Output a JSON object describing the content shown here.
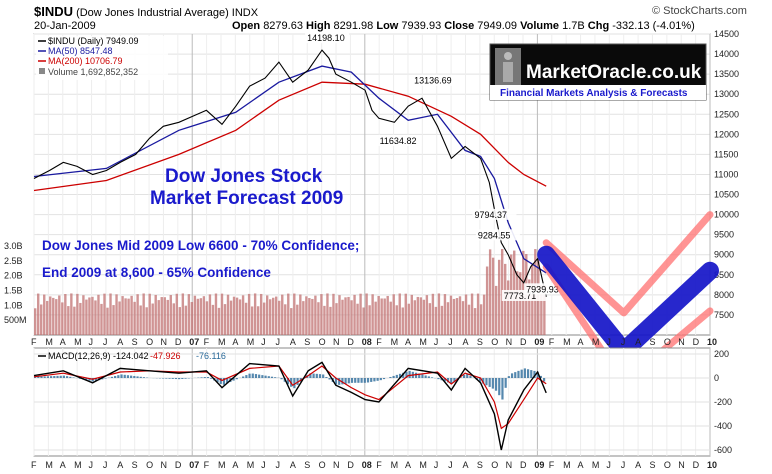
{
  "header": {
    "symbol": "$INDU",
    "name": "(Dow Jones Industrial Average)",
    "exchange": "INDX",
    "date": "20-Jan-2009",
    "source": "© StockCharts.com",
    "open_label": "Open",
    "open": "8279.63",
    "high_label": "High",
    "high": "8291.98",
    "low_label": "Low",
    "low": "7939.93",
    "close_label": "Close",
    "close": "7949.09",
    "volume_label": "Volume",
    "volume": "1.7B",
    "chg_label": "Chg",
    "chg": "-332.13 (-4.01%)"
  },
  "legend": {
    "price": "$INDU (Daily) 7949.09",
    "ma50": "MA(50) 8547.48",
    "ma200": "MA(200) 10706.79",
    "volume": "Volume 1,692,852,352"
  },
  "logo": {
    "brand": "MarketOracle.co.uk",
    "tagline": "Financial Markets Analysis & Forecasts"
  },
  "annotations": {
    "forecast_title_1": "Dow Jones Stock",
    "forecast_title_2": "Market Forecast 2009",
    "line1": "Dow Jones Mid 2009 Low 6600 - 70% Confidence;",
    "line2": "End 2009 at 8,600 - 65% Confidence"
  },
  "colors": {
    "ma50": "#1a1aa0",
    "ma200": "#cc0000",
    "price": "#000000",
    "volume": "#c07070",
    "forecast": "#1515c8",
    "band": "#ff7070",
    "annotation": "#1a1acc",
    "macd_hist": "#2a6a9a"
  },
  "chart_data": [
    {
      "type": "line",
      "name": "price",
      "ylim": [
        7000,
        14500
      ],
      "yticks": [
        7500,
        8000,
        8500,
        9000,
        9500,
        10000,
        10500,
        11000,
        11500,
        12000,
        12500,
        13000,
        13500,
        14000,
        14500
      ],
      "xlim": [
        2006.08,
        2010.0
      ],
      "x_tick_labels": [
        "F",
        "M",
        "A",
        "M",
        "J",
        "J",
        "A",
        "S",
        "O",
        "N",
        "D",
        "07",
        "F",
        "M",
        "A",
        "M",
        "J",
        "J",
        "A",
        "S",
        "O",
        "N",
        "D",
        "08",
        "F",
        "M",
        "A",
        "M",
        "J",
        "J",
        "A",
        "S",
        "O",
        "N",
        "D",
        "09",
        "F",
        "M",
        "A",
        "M",
        "J",
        "J",
        "A",
        "S",
        "O",
        "N",
        "D",
        "10"
      ],
      "price_series": {
        "x": [
          2006.08,
          2006.17,
          2006.25,
          2006.33,
          2006.42,
          2006.5,
          2006.58,
          2006.67,
          2006.75,
          2006.83,
          2006.92,
          2007.0,
          2007.08,
          2007.17,
          2007.25,
          2007.33,
          2007.42,
          2007.5,
          2007.58,
          2007.67,
          2007.75,
          2007.79,
          2007.83,
          2007.92,
          2008.0,
          2008.04,
          2008.08,
          2008.17,
          2008.25,
          2008.33,
          2008.42,
          2008.5,
          2008.58,
          2008.67,
          2008.72,
          2008.76,
          2008.79,
          2008.83,
          2008.88,
          2008.92,
          2008.96,
          2009.0,
          2009.05
        ],
        "y": [
          10900,
          11100,
          11300,
          11200,
          11000,
          11100,
          11300,
          11500,
          11900,
          12200,
          12300,
          12450,
          12600,
          12250,
          12700,
          13200,
          13400,
          13800,
          13300,
          13600,
          14100,
          13900,
          13500,
          13300,
          13100,
          12600,
          12400,
          12300,
          12700,
          12900,
          12200,
          11400,
          11700,
          11400,
          10800,
          9900,
          9300,
          9000,
          8500,
          8300,
          8700,
          8900,
          7950
        ]
      },
      "ma50": {
        "x": [
          2006.08,
          2006.5,
          2006.92,
          2007.25,
          2007.5,
          2007.75,
          2007.92,
          2008.08,
          2008.25,
          2008.42,
          2008.58,
          2008.67,
          2008.75,
          2008.83,
          2008.92,
          2009.05
        ],
        "y": [
          10950,
          11150,
          12100,
          12550,
          13300,
          13700,
          13550,
          12900,
          12350,
          12500,
          11600,
          11450,
          10900,
          9800,
          8900,
          8547
        ]
      },
      "ma200": {
        "x": [
          2006.08,
          2006.5,
          2006.92,
          2007.25,
          2007.5,
          2007.75,
          2008.0,
          2008.25,
          2008.5,
          2008.67,
          2008.83,
          2008.92,
          2009.05
        ],
        "y": [
          10600,
          10850,
          11500,
          12100,
          12850,
          13300,
          13250,
          12950,
          12450,
          12000,
          11300,
          11000,
          10707
        ]
      },
      "volume": {
        "levels_label": [
          "3.0B",
          "2.5B",
          "2.0B",
          "1.5B",
          "1.0B",
          "500M"
        ],
        "levels_value": [
          3.0,
          2.5,
          2.0,
          1.5,
          1.0,
          0.5
        ],
        "latest_B": 1.69
      },
      "labels": [
        {
          "text": "14198.10",
          "x": 2007.78,
          "y": 14198
        },
        {
          "text": "13136.69",
          "x": 2008.4,
          "y": 13136
        },
        {
          "text": "11634.82",
          "x": 2008.2,
          "y": 11634
        },
        {
          "text": "9794.37",
          "x": 2008.75,
          "y": 9794
        },
        {
          "text": "9284.55",
          "x": 2008.77,
          "y": 9284
        },
        {
          "text": "7773.71",
          "x": 2008.92,
          "y": 7773
        },
        {
          "text": "7939.93",
          "x": 2009.05,
          "y": 7939
        }
      ],
      "forecast": {
        "x": [
          2009.05,
          2009.5,
          2010.0
        ],
        "y": [
          9000,
          6600,
          8600
        ]
      },
      "band_upper": {
        "x": [
          2009.05,
          2009.5,
          2010.0
        ],
        "y": [
          9300,
          7550,
          10000
        ]
      },
      "band_lower": {
        "x": [
          2009.05,
          2009.5,
          2010.0
        ],
        "y": [
          8700,
          5800,
          7600
        ]
      }
    },
    {
      "type": "line",
      "name": "MACD",
      "title": "MACD(12,26,9) -124.042",
      "signal_label": "-47.926",
      "hist_label": "-76.116",
      "ylim": [
        -650,
        250
      ],
      "yticks": [
        200,
        0,
        -200,
        -400,
        -600
      ],
      "macd": {
        "x": [
          2006.08,
          2006.25,
          2006.42,
          2006.58,
          2006.75,
          2006.92,
          2007.08,
          2007.17,
          2007.33,
          2007.5,
          2007.58,
          2007.67,
          2007.75,
          2007.83,
          2007.92,
          2008.0,
          2008.08,
          2008.25,
          2008.42,
          2008.5,
          2008.58,
          2008.67,
          2008.75,
          2008.79,
          2008.83,
          2008.92,
          2009.0,
          2009.05
        ],
        "y": [
          20,
          60,
          -40,
          80,
          60,
          40,
          60,
          -80,
          120,
          100,
          -150,
          60,
          130,
          -60,
          -120,
          -180,
          -200,
          80,
          40,
          -100,
          80,
          -40,
          -300,
          -600,
          -350,
          -100,
          50,
          -124
        ]
      },
      "signal": {
        "x": [
          2006.08,
          2006.25,
          2006.42,
          2006.58,
          2006.75,
          2006.92,
          2007.08,
          2007.17,
          2007.33,
          2007.5,
          2007.58,
          2007.67,
          2007.75,
          2007.83,
          2007.92,
          2008.0,
          2008.08,
          2008.25,
          2008.42,
          2008.5,
          2008.58,
          2008.67,
          2008.75,
          2008.79,
          2008.83,
          2008.92,
          2009.0,
          2009.05
        ],
        "y": [
          10,
          40,
          -10,
          50,
          60,
          50,
          50,
          -20,
          80,
          100,
          -60,
          20,
          100,
          0,
          -80,
          -140,
          -180,
          20,
          50,
          -50,
          40,
          0,
          -200,
          -420,
          -380,
          -180,
          0,
          -48
        ]
      }
    }
  ]
}
